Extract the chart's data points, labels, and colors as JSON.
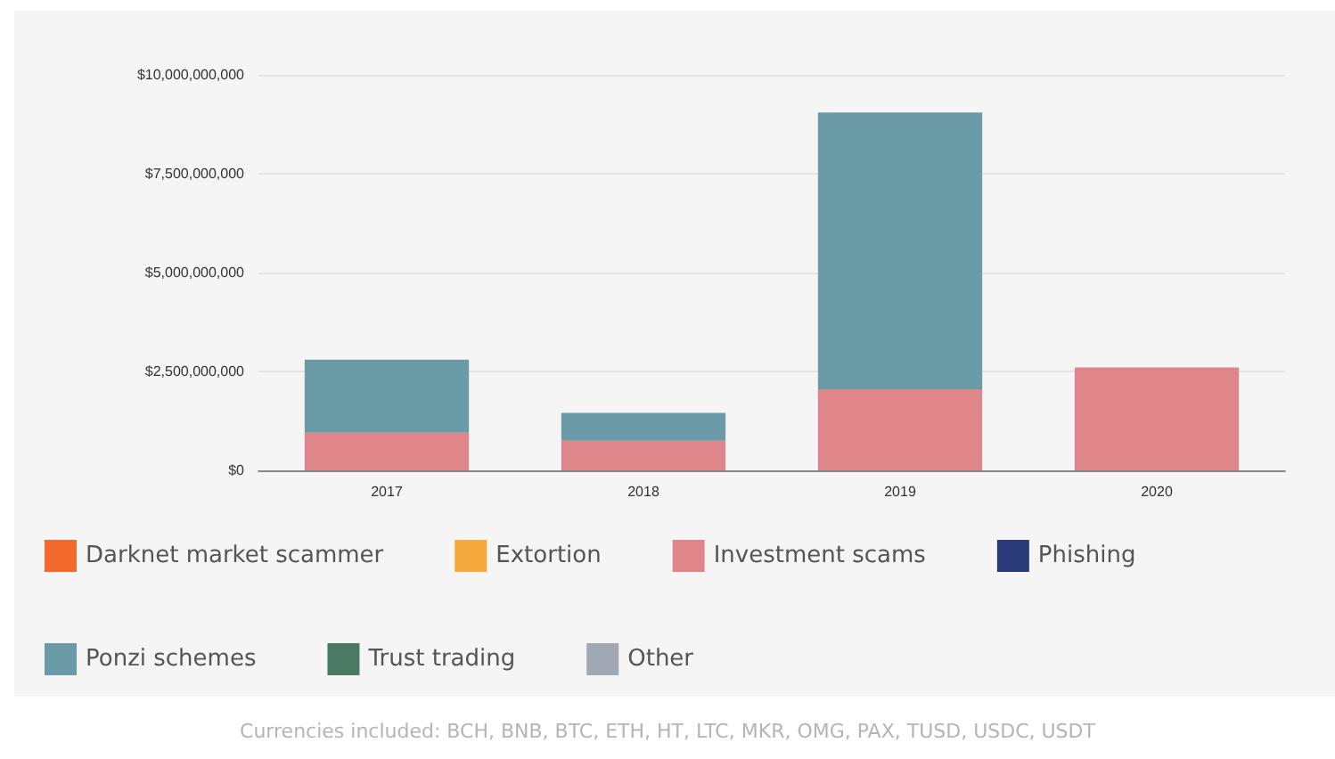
{
  "chart_data": {
    "type": "bar",
    "stacked": true,
    "categories": [
      "2017",
      "2018",
      "2019",
      "2020"
    ],
    "series": [
      {
        "name": "Darknet market scammer",
        "color": "#f26a2e",
        "values": [
          0,
          0,
          0,
          0
        ]
      },
      {
        "name": "Extortion",
        "color": "#f5a93a",
        "values": [
          0,
          0,
          0,
          0
        ]
      },
      {
        "name": "Investment scams",
        "color": "#e0868a",
        "values": [
          950000000,
          750000000,
          2050000000,
          2600000000
        ]
      },
      {
        "name": "Phishing",
        "color": "#2b3a78",
        "values": [
          0,
          0,
          0,
          0
        ]
      },
      {
        "name": "Ponzi schemes",
        "color": "#6a9ba7",
        "values": [
          1850000000,
          700000000,
          7000000000,
          0
        ]
      },
      {
        "name": "Trust trading",
        "color": "#4a7a64",
        "values": [
          0,
          0,
          0,
          0
        ]
      },
      {
        "name": "Other",
        "color": "#a2a8b4",
        "values": [
          0,
          0,
          0,
          0
        ]
      }
    ],
    "ylim": [
      0,
      10000000000
    ],
    "yticks": [
      {
        "value": 0,
        "label": "$0"
      },
      {
        "value": 2500000000,
        "label": "$2,500,000,000"
      },
      {
        "value": 5000000000,
        "label": "$5,000,000,000"
      },
      {
        "value": 7500000000,
        "label": "$7,500,000,000"
      },
      {
        "value": 10000000000,
        "label": "$10,000,000,000"
      }
    ],
    "grid": "y",
    "legend": "bottom",
    "annotations": [
      "Currencies included: BCH, BNB, BTC, ETH, HT, LTC, MKR, OMG, PAX, TUSD, USDC, USDT"
    ]
  }
}
